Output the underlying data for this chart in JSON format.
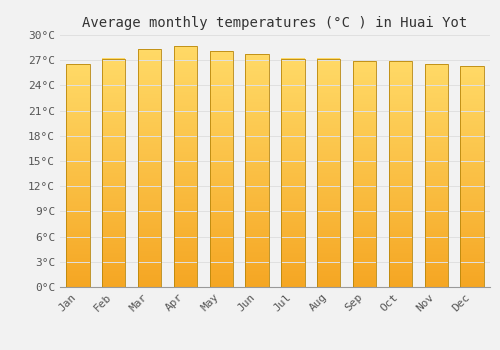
{
  "months": [
    "Jan",
    "Feb",
    "Mar",
    "Apr",
    "May",
    "Jun",
    "Jul",
    "Aug",
    "Sep",
    "Oct",
    "Nov",
    "Dec"
  ],
  "values": [
    26.5,
    27.2,
    28.3,
    28.7,
    28.1,
    27.7,
    27.2,
    27.2,
    26.9,
    26.9,
    26.5,
    26.3
  ],
  "title": "Average monthly temperatures (°C ) in Huai Yot",
  "bar_color_bottom": "#F5A623",
  "bar_color_top": "#FFD966",
  "bar_edge_color": "#B8860B",
  "background_color": "#F2F2F2",
  "grid_color": "#E0E0E0",
  "ytick_step": 3,
  "ylim": [
    0,
    30
  ],
  "title_fontsize": 10,
  "tick_fontsize": 8,
  "font_family": "monospace"
}
